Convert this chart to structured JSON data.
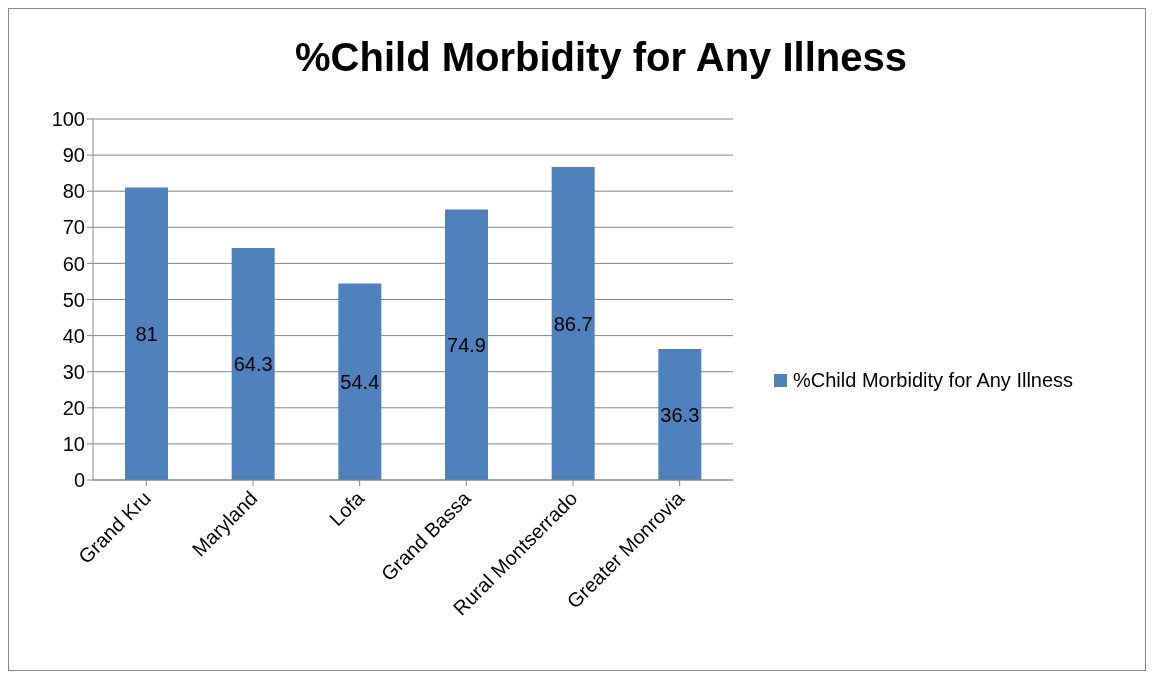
{
  "chart_data": {
    "type": "bar",
    "title": "%Child Morbidity for Any Illness",
    "categories": [
      "Grand Kru",
      "Maryland",
      "Lofa",
      "Grand Bassa",
      "Rural Montserrado",
      "Greater Monrovia"
    ],
    "series": [
      {
        "name": "%Child Morbidity for Any Illness",
        "color": "#4f81bd",
        "values": [
          81,
          64.3,
          54.4,
          74.9,
          86.7,
          36.3
        ]
      }
    ],
    "ylim": [
      0,
      100
    ],
    "yticks": [
      0,
      10,
      20,
      30,
      40,
      50,
      60,
      70,
      80,
      90,
      100
    ],
    "grid": "y",
    "legend": "right",
    "data_labels": true
  }
}
